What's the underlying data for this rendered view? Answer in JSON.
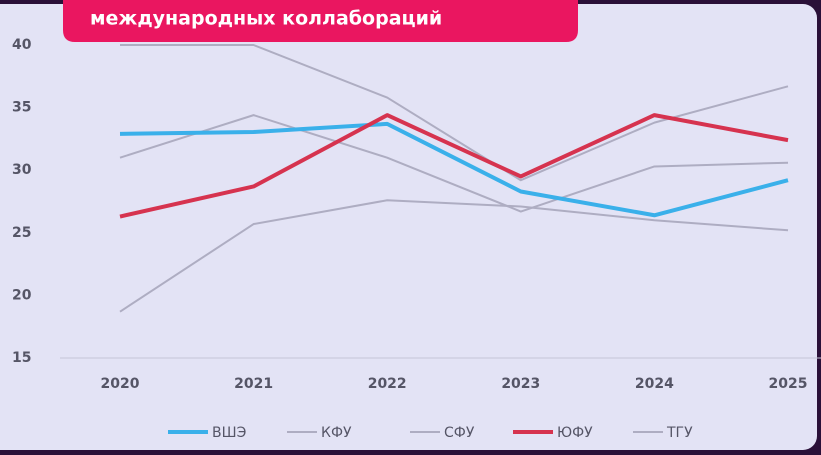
{
  "chart_data": {
    "type": "line",
    "title": "международных коллабораций",
    "x": [
      2020,
      2021,
      2022,
      2023,
      2024,
      2025
    ],
    "xlim": [
      2020,
      2025
    ],
    "xticks": [
      2020,
      2021,
      2022,
      2023,
      2024,
      2025
    ],
    "ylim": [
      15,
      40
    ],
    "yticks": [
      15,
      20,
      25,
      30,
      35,
      40
    ],
    "series": [
      {
        "name": "ВШЭ",
        "color": "#3ab0ea",
        "width": 4,
        "values": [
          32.9,
          33.05,
          33.7,
          28.3,
          26.4,
          29.2
        ]
      },
      {
        "name": "КФУ",
        "color": "#aeadc2",
        "width": 2,
        "values": [
          40,
          40,
          35.8,
          29.2,
          33.8,
          36.7
        ]
      },
      {
        "name": "СФУ",
        "color": "#aeadc2",
        "width": 2,
        "values": [
          31.0,
          34.4,
          31.0,
          26.7,
          30.3,
          30.6
        ]
      },
      {
        "name": "ЮФУ",
        "color": "#d6334f",
        "width": 4,
        "values": [
          26.3,
          28.7,
          34.4,
          29.5,
          34.4,
          32.4
        ]
      },
      {
        "name": "ТГУ",
        "color": "#aeadc2",
        "width": 2,
        "values": [
          18.7,
          25.7,
          27.6,
          27.1,
          26.0,
          25.2
        ]
      }
    ]
  }
}
